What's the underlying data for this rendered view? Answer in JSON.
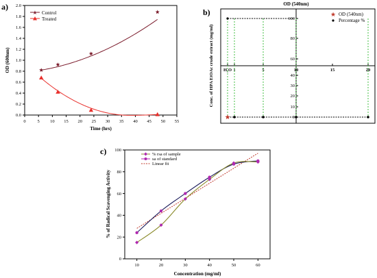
{
  "colors": {
    "axis": "#000000",
    "control": "#7a1a2a",
    "treated": "#e8302c",
    "od540": "#c0392b",
    "percentage": "#000000",
    "connector": "#2db82d",
    "rsa_sample": "#8a8a2a",
    "sa_standard": "#b02ab0",
    "linear_fit": "#c0392b"
  },
  "panels": {
    "a": {
      "letter": "a)"
    },
    "b": {
      "letter": "b)"
    },
    "c": {
      "letter": "c)"
    }
  },
  "chart_data": [
    {
      "id": "a",
      "type": "line",
      "title": "",
      "xlabel": "Time (hrs)",
      "ylabel": "OD (600nm)",
      "xlim": [
        0,
        55
      ],
      "ylim": [
        0,
        2.0
      ],
      "xticks": [
        "0",
        "5",
        "10",
        "15",
        "20",
        "25",
        "30",
        "35",
        "40",
        "45",
        "50",
        "55"
      ],
      "yticks": [
        "0.0",
        "0.2",
        "0.4",
        "0.6",
        "0.8",
        "1.0",
        "1.2",
        "1.4",
        "1.6",
        "1.8",
        "2.0"
      ],
      "legend_position": "top-left",
      "series": [
        {
          "name": "Control",
          "marker": "star",
          "x": [
            6,
            12,
            24,
            48
          ],
          "y": [
            0.82,
            0.92,
            1.12,
            1.88
          ]
        },
        {
          "name": "Treated",
          "marker": "triangle",
          "x": [
            6,
            12,
            24,
            48
          ],
          "y": [
            0.68,
            0.42,
            0.09,
            0.01
          ]
        }
      ]
    },
    {
      "id": "b",
      "type": "scatter",
      "title": "OD (540nm)",
      "xlabel": "",
      "ylabel": "Conc. of HPA EtOAc crude extract (mg/ml)",
      "categories": [
        "H₂O",
        "1",
        "5",
        "10",
        "15",
        "20"
      ],
      "upper_yticks": [
        "60",
        "80",
        "100"
      ],
      "lower_yticks": [
        "0",
        "10",
        "20",
        "30",
        "40"
      ],
      "legend_position": "top-right",
      "series": [
        {
          "name": "OD (540nm)",
          "marker": "star",
          "x": [
            "H₂O",
            "1",
            "5",
            "10",
            "20"
          ],
          "y": [
            0,
            0,
            0,
            0,
            0
          ]
        },
        {
          "name": "Percentage %",
          "marker": "dot",
          "x": [
            "H₂O",
            "1",
            "5",
            "10",
            "20"
          ],
          "y": [
            100,
            0,
            0,
            0,
            0
          ]
        }
      ]
    },
    {
      "id": "c",
      "type": "line",
      "title": "",
      "xlabel": "Concentration (mg/ml)",
      "ylabel": "% of Radical Scavenging Activity",
      "xlim": [
        5,
        65
      ],
      "ylim": [
        0,
        100
      ],
      "xticks": [
        "10",
        "20",
        "30",
        "40",
        "50",
        "60"
      ],
      "yticks": [
        "0",
        "20",
        "40",
        "60",
        "80",
        "100"
      ],
      "legend_position": "top-left",
      "series": [
        {
          "name": "% rsa of sample",
          "marker": "diamond",
          "x": [
            10,
            20,
            30,
            40,
            50,
            60
          ],
          "y": [
            15,
            31,
            55,
            73,
            88,
            89
          ]
        },
        {
          "name": "sa of standard",
          "marker": "circle",
          "x": [
            10,
            20,
            30,
            40,
            50,
            60
          ],
          "y": [
            24,
            44,
            60,
            75,
            87,
            90
          ]
        },
        {
          "name": "Linear fit",
          "marker": "none",
          "x": [
            10,
            60
          ],
          "y": [
            28,
            97
          ]
        }
      ]
    }
  ]
}
